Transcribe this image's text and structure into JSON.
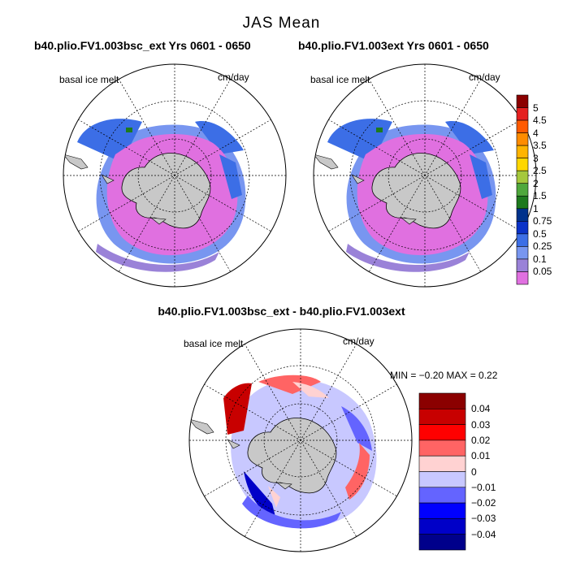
{
  "main_title": "JAS Mean",
  "panels": [
    {
      "case": "b40.plio.FV1.003bsc_ext  Yrs 0601 - 0650",
      "variable": "basal ice melt",
      "units": "cm/day"
    },
    {
      "case": "b40.plio.FV1.003ext  Yrs 0601 - 0650",
      "variable": "basal ice melt",
      "units": "cm/day"
    }
  ],
  "diff_panel": {
    "case": "b40.plio.FV1.003bsc_ext - b40.plio.FV1.003ext",
    "variable": "basal ice melt",
    "units": "cm/day",
    "minmax": "MIN =   −0.20  MAX =    0.22"
  },
  "abs_legend": {
    "labels": [
      "5",
      "4.5",
      "4",
      "3.5",
      "3",
      "2.5",
      "2",
      "1.5",
      "1",
      "0.75",
      "0.5",
      "0.25",
      "0.1",
      "0.05"
    ],
    "colors": [
      "#8b0000",
      "#e52020",
      "#ff5a00",
      "#ff8c00",
      "#ffb400",
      "#ffd700",
      "#a5c83c",
      "#4fa83c",
      "#1e7a1e",
      "#00328c",
      "#0a32c8",
      "#3c6ee6",
      "#7896f0",
      "#9a82d8",
      "#e070e0"
    ]
  },
  "diff_legend": {
    "labels": [
      "0.04",
      "0.03",
      "0.02",
      "0.01",
      "0",
      "−0.01",
      "−0.02",
      "−0.03",
      "−0.04"
    ],
    "colors": [
      "#8b0000",
      "#c80000",
      "#ff0000",
      "#ff6464",
      "#ffd2d2",
      "#c8c8ff",
      "#6464ff",
      "#0000ff",
      "#0000c8",
      "#00008b"
    ]
  }
}
